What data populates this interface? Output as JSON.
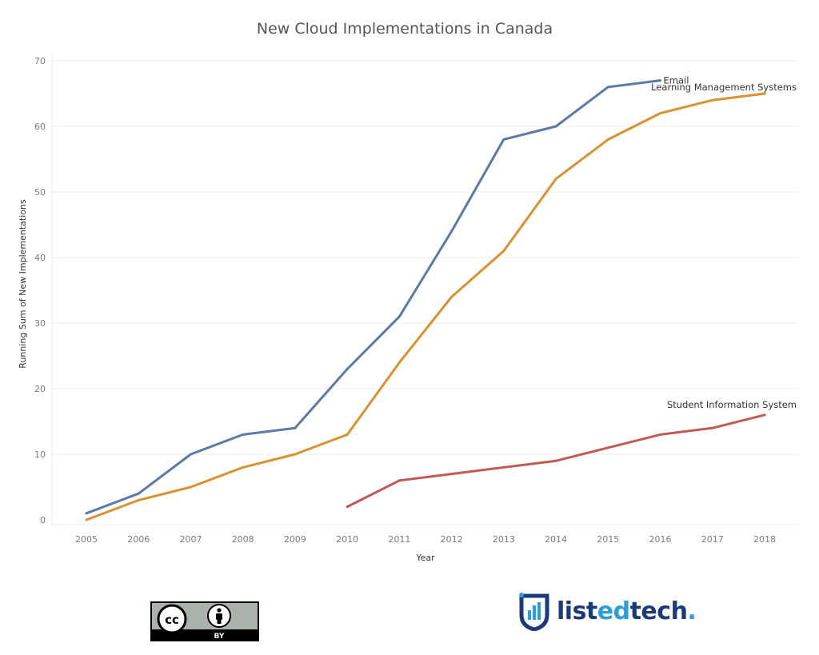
{
  "chart_data": {
    "type": "line",
    "title": "New Cloud Implementations in Canada",
    "xlabel": "Year",
    "ylabel": "Running Sum of New Implementations",
    "x": [
      2005,
      2006,
      2007,
      2008,
      2009,
      2010,
      2011,
      2012,
      2013,
      2014,
      2015,
      2016,
      2017,
      2018
    ],
    "ylim": [
      0,
      70
    ],
    "yticks": [
      0,
      10,
      20,
      30,
      40,
      50,
      60,
      70
    ],
    "grid": true,
    "legend": "inline labels at line ends",
    "series": [
      {
        "name": "Email",
        "color": "#5b7aa8",
        "x": [
          2005,
          2006,
          2007,
          2008,
          2009,
          2010,
          2011,
          2012,
          2013,
          2014,
          2015,
          2016
        ],
        "values": [
          1,
          4,
          10,
          13,
          14,
          23,
          31,
          44,
          58,
          60,
          66,
          67
        ]
      },
      {
        "name": "Learning Management Systems",
        "color": "#d9922e",
        "x": [
          2005,
          2006,
          2007,
          2008,
          2009,
          2010,
          2011,
          2012,
          2013,
          2014,
          2015,
          2016,
          2017,
          2018
        ],
        "values": [
          0,
          3,
          5,
          8,
          10,
          13,
          24,
          34,
          41,
          52,
          58,
          62,
          64,
          65
        ]
      },
      {
        "name": "Student Information System",
        "color": "#c05a55",
        "x": [
          2010,
          2011,
          2012,
          2013,
          2014,
          2015,
          2016,
          2017,
          2018
        ],
        "values": [
          2,
          6,
          7,
          8,
          9,
          11,
          13,
          14,
          16
        ]
      }
    ]
  },
  "footer": {
    "license_badge": {
      "text": "BY",
      "icon": "creative-commons-by-icon"
    },
    "brand": {
      "part1": "list",
      "part2": "ed",
      "part3": "tech",
      "suffix": ".",
      "icon": "shield-bars-icon"
    }
  }
}
